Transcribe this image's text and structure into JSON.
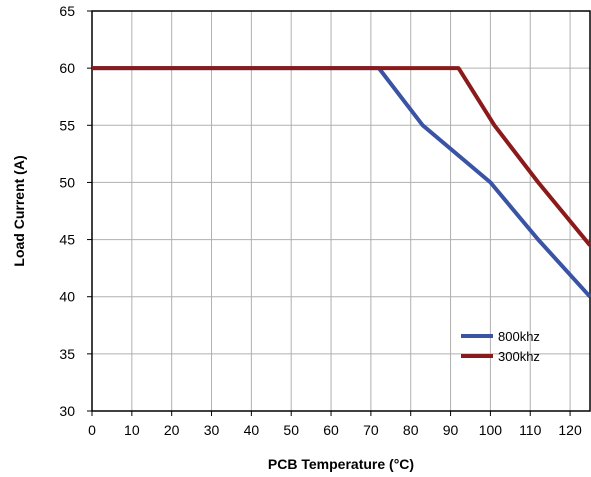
{
  "chart_data": {
    "type": "line",
    "title": "",
    "xlabel": "PCB Temperature (°C)",
    "ylabel": "Load Current (A)",
    "xlim": [
      0,
      125
    ],
    "ylim": [
      30,
      65
    ],
    "xticks": [
      0,
      10,
      20,
      30,
      40,
      50,
      60,
      70,
      80,
      90,
      100,
      110,
      120
    ],
    "yticks": [
      30,
      35,
      40,
      45,
      50,
      55,
      60,
      65
    ],
    "grid": true,
    "legend_position": "bottom-right",
    "series": [
      {
        "name": "800khz",
        "color": "#3a53a4",
        "x": [
          0,
          72,
          83,
          100,
          112,
          125
        ],
        "y": [
          60,
          60,
          55,
          50,
          45,
          40
        ]
      },
      {
        "name": "300khz",
        "color": "#8b1a1a",
        "x": [
          0,
          92,
          101,
          112,
          125
        ],
        "y": [
          60,
          60,
          55,
          50,
          44.5
        ]
      }
    ]
  }
}
